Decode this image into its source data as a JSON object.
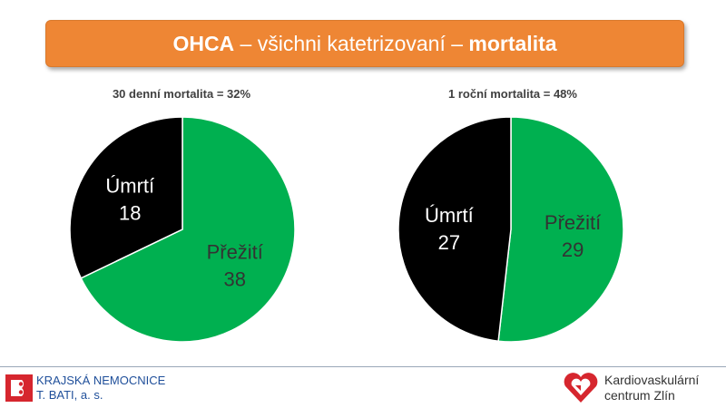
{
  "banner": {
    "part1": "OHCA",
    "part2": " – všichni katetrizovaní – ",
    "part3": "mortalita"
  },
  "chart_data": [
    {
      "type": "pie",
      "title": "30 denní mortalita = 32%",
      "slices": [
        {
          "label": "Přežití",
          "value": 38,
          "color": "#00b050"
        },
        {
          "label": "Úmrtí",
          "value": 18,
          "color": "#000000"
        }
      ]
    },
    {
      "type": "pie",
      "title": "1 roční mortalita = 48%",
      "slices": [
        {
          "label": "Přežití",
          "value": 29,
          "color": "#00b050"
        },
        {
          "label": "Úmrtí",
          "value": 27,
          "color": "#000000"
        }
      ]
    }
  ],
  "footer": {
    "left_line1": "KRAJSKÁ NEMOCNICE",
    "left_line2": "T. BATI, a. s.",
    "right_line1": "Kardiovaskulární",
    "right_line2": "centrum Zlín"
  }
}
